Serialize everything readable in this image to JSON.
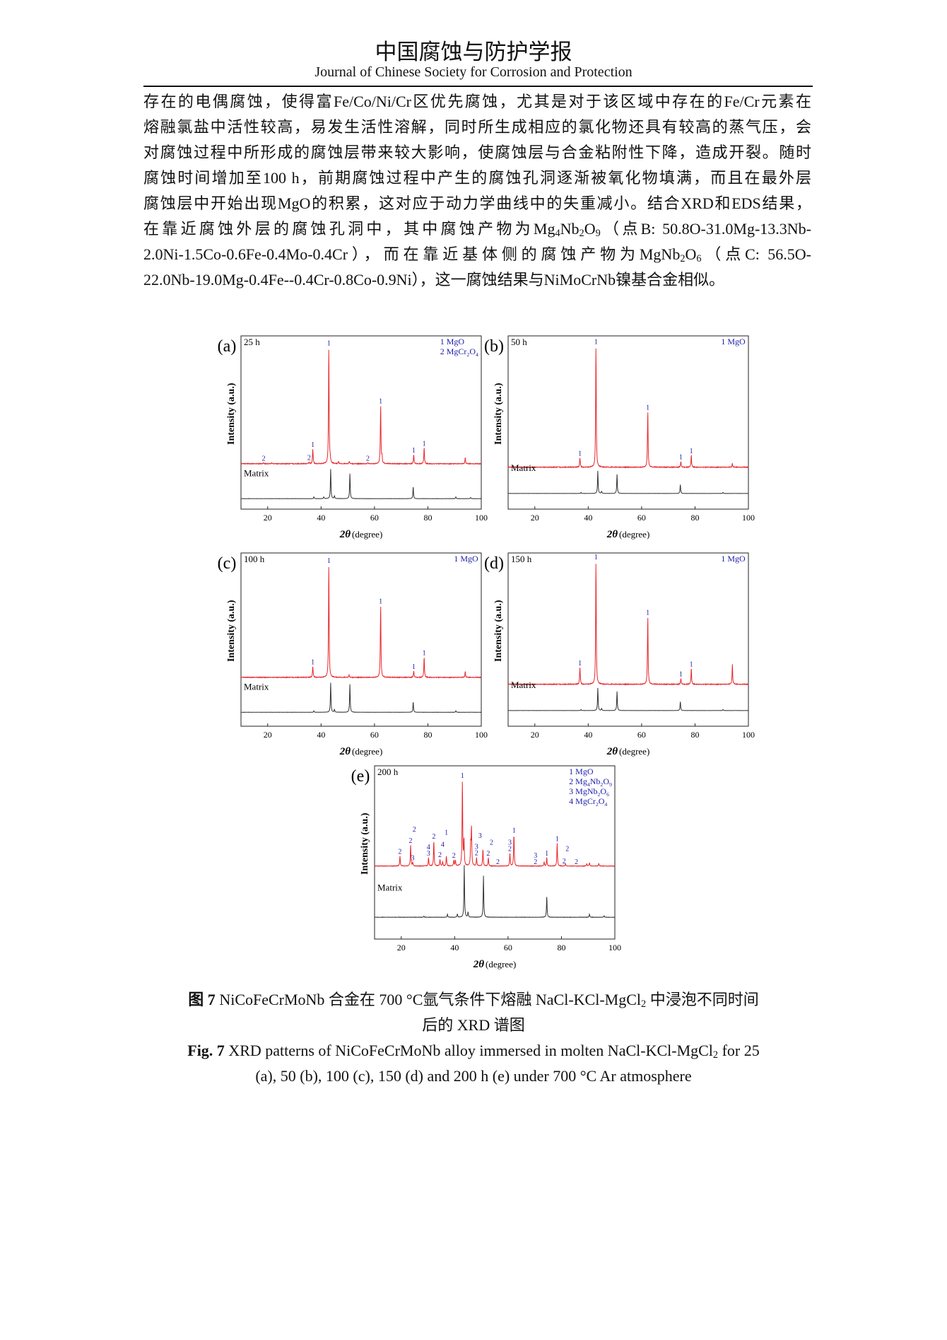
{
  "header": {
    "title_cn": "中国腐蚀与防护学报",
    "title_en": "Journal of Chinese Society for Corrosion and Protection"
  },
  "body_lines": [
    [
      {
        "t": "存在的电偶腐蚀，使得富Fe/Co/Ni/Cr区优先腐蚀，尤其是对于该区域中存在的Fe/Cr元素在"
      }
    ],
    [
      {
        "t": "熔融氯盐中活性较高，易发生活性溶解，同时所生成相应的氯化物还具有较高的蒸气压，会"
      }
    ],
    [
      {
        "t": "对腐蚀过程中所形成的腐蚀层带来较大影响，使腐蚀层与合金粘附性下降，造成开裂。随时"
      }
    ],
    [
      {
        "t": "腐蚀时间增加至100 h，前期腐蚀过程中产生的腐蚀孔洞逐渐被氧化物填满，而且在最外层"
      }
    ],
    [
      {
        "t": "腐蚀层中开始出现MgO的积累，这对应于动力学曲线中的失重减小。结合XRD和EDS结果，"
      }
    ],
    [
      {
        "t": "在靠近腐蚀外层的腐蚀孔洞中，其中腐蚀产物为Mg"
      },
      {
        "t": "4",
        "sub": true
      },
      {
        "t": "Nb"
      },
      {
        "t": "2",
        "sub": true
      },
      {
        "t": "O"
      },
      {
        "t": "9",
        "sub": true
      },
      {
        "t": "（点B: 50.8O-31.0Mg-13.3Nb-"
      }
    ],
    [
      {
        "t": "2.0Ni-1.5Co-0.6Fe-0.4Mo-0.4Cr），而在靠近基体侧的腐蚀产物为MgNb"
      },
      {
        "t": "2",
        "sub": true
      },
      {
        "t": "O"
      },
      {
        "t": "6",
        "sub": true
      },
      {
        "t": "（点C: 56.5O-"
      }
    ],
    [
      {
        "t": "22.0Nb-19.0Mg-0.4Fe--0.4Cr-0.8Co-0.9Ni），这一腐蚀结果与NiMoCrNb镍基合金相似。"
      }
    ]
  ],
  "chart_data": [
    {
      "type": "line",
      "panel": "(a)",
      "time": "25 h",
      "xlabel_sym": "2θ",
      "xlabel_unit": "(degree)",
      "ylabel": "Intensity (a.u.)",
      "xlim": [
        10,
        100
      ],
      "xticks": [
        20,
        40,
        60,
        80,
        100
      ],
      "grid": false,
      "legend_placement": "top-right",
      "legend": [
        [
          "1",
          "MgO"
        ],
        [
          "2",
          "MgCr2O4"
        ]
      ],
      "matrix_label": "Matrix",
      "colors": {
        "sample": "#e8262b",
        "matrix": "#333333",
        "labels": "#1a1aa8"
      },
      "sample_peaks": [
        [
          18.5,
          0.01
        ],
        [
          21.5,
          0.01
        ],
        [
          35.5,
          0.015
        ],
        [
          36.9,
          0.13
        ],
        [
          42.9,
          1.0
        ],
        [
          43.4,
          0.04
        ],
        [
          46.5,
          0.02
        ],
        [
          50.6,
          0.02
        ],
        [
          57.5,
          0.01
        ],
        [
          62.3,
          0.5
        ],
        [
          62.8,
          0.06
        ],
        [
          74.7,
          0.08
        ],
        [
          78.6,
          0.14
        ],
        [
          94.0,
          0.05
        ]
      ],
      "matrix_peaks": [
        [
          37.3,
          0.06
        ],
        [
          41.0,
          0.06
        ],
        [
          43.6,
          1.0
        ],
        [
          45.0,
          0.1
        ],
        [
          50.8,
          0.85
        ],
        [
          74.5,
          0.4
        ],
        [
          90.5,
          0.06
        ],
        [
          96.0,
          0.04
        ]
      ],
      "peak_labels": [
        [
          18.5,
          "2"
        ],
        [
          35.5,
          "2"
        ],
        [
          36.9,
          "1"
        ],
        [
          42.9,
          "1"
        ],
        [
          57.5,
          "2"
        ],
        [
          62.3,
          "1"
        ],
        [
          74.7,
          "1"
        ],
        [
          78.6,
          "1"
        ]
      ]
    },
    {
      "type": "line",
      "panel": "(b)",
      "time": "50 h",
      "xlabel_sym": "2θ",
      "xlabel_unit": "(degree)",
      "ylabel": "Intensity (a.u.)",
      "xlim": [
        10,
        100
      ],
      "xticks": [
        20,
        40,
        60,
        80,
        100
      ],
      "grid": false,
      "legend_placement": "top-right",
      "legend": [
        [
          "1",
          "MgO"
        ]
      ],
      "matrix_label": "Matrix",
      "colors": {
        "sample": "#e8262b",
        "matrix": "#333333",
        "labels": "#1a1aa8"
      },
      "sample_peaks": [
        [
          36.9,
          0.08
        ],
        [
          42.9,
          1.0
        ],
        [
          62.3,
          0.46
        ],
        [
          74.7,
          0.05
        ],
        [
          78.6,
          0.1
        ],
        [
          94.0,
          0.03
        ]
      ],
      "matrix_peaks": [
        [
          37.3,
          0.05
        ],
        [
          43.6,
          1.0
        ],
        [
          45.0,
          0.1
        ],
        [
          50.8,
          0.85
        ],
        [
          74.5,
          0.4
        ],
        [
          90.5,
          0.05
        ]
      ],
      "peak_labels": [
        [
          36.9,
          "1"
        ],
        [
          42.9,
          "1"
        ],
        [
          62.3,
          "1"
        ],
        [
          74.7,
          "1"
        ],
        [
          78.6,
          "1"
        ]
      ]
    },
    {
      "type": "line",
      "panel": "(c)",
      "time": "100 h",
      "xlabel_sym": "2θ",
      "xlabel_unit": "(degree)",
      "ylabel": "Intensity (a.u.)",
      "xlim": [
        10,
        100
      ],
      "xticks": [
        20,
        40,
        60,
        80,
        100
      ],
      "grid": false,
      "legend_placement": "top-right",
      "legend": [
        [
          "1",
          "MgO"
        ]
      ],
      "matrix_label": "Matrix",
      "colors": {
        "sample": "#e8262b",
        "matrix": "#333333",
        "labels": "#1a1aa8"
      },
      "sample_peaks": [
        [
          36.9,
          0.1
        ],
        [
          42.9,
          1.0
        ],
        [
          50.5,
          0.02
        ],
        [
          62.3,
          0.64
        ],
        [
          74.7,
          0.06
        ],
        [
          78.6,
          0.18
        ],
        [
          94.0,
          0.05
        ]
      ],
      "matrix_peaks": [
        [
          37.3,
          0.05
        ],
        [
          43.6,
          1.0
        ],
        [
          45.0,
          0.1
        ],
        [
          50.8,
          0.95
        ],
        [
          74.5,
          0.35
        ],
        [
          90.5,
          0.05
        ]
      ],
      "peak_labels": [
        [
          36.9,
          "1"
        ],
        [
          42.9,
          "1"
        ],
        [
          62.3,
          "1"
        ],
        [
          74.7,
          "1"
        ],
        [
          78.6,
          "1"
        ]
      ]
    },
    {
      "type": "line",
      "panel": "(d)",
      "time": "150 h",
      "xlabel_sym": "2θ",
      "xlabel_unit": "(degree)",
      "ylabel": "Intensity (a.u.)",
      "xlim": [
        10,
        100
      ],
      "xticks": [
        20,
        40,
        60,
        80,
        100
      ],
      "grid": false,
      "legend_placement": "top-right",
      "legend": [
        [
          "1",
          "MgO"
        ]
      ],
      "matrix_label": "Matrix",
      "colors": {
        "sample": "#e8262b",
        "matrix": "#333333",
        "labels": "#1a1aa8"
      },
      "sample_peaks": [
        [
          36.9,
          0.14
        ],
        [
          42.9,
          1.0
        ],
        [
          62.3,
          0.55
        ],
        [
          74.7,
          0.05
        ],
        [
          78.6,
          0.13
        ],
        [
          94.0,
          0.16
        ]
      ],
      "matrix_peaks": [
        [
          37.3,
          0.05
        ],
        [
          43.6,
          1.0
        ],
        [
          45.0,
          0.1
        ],
        [
          50.8,
          0.85
        ],
        [
          74.5,
          0.4
        ],
        [
          90.5,
          0.05
        ]
      ],
      "peak_labels": [
        [
          36.9,
          "1"
        ],
        [
          42.9,
          "1"
        ],
        [
          62.3,
          "1"
        ],
        [
          74.7,
          "1"
        ],
        [
          78.6,
          "1"
        ]
      ]
    },
    {
      "type": "line",
      "panel": "(e)",
      "time": "200 h",
      "xlabel_sym": "2θ",
      "xlabel_unit": "(degree)",
      "ylabel": "Intensity (a.u.)",
      "xlim": [
        10,
        100
      ],
      "xticks": [
        20,
        40,
        60,
        80,
        100
      ],
      "grid": false,
      "legend_placement": "top-right",
      "legend": [
        [
          "1",
          "MgO"
        ],
        [
          "2",
          "Mg4Nb2O9"
        ],
        [
          "3",
          "MgNb2O6"
        ],
        [
          "4",
          "MgCr2O4"
        ]
      ],
      "matrix_label": "Matrix",
      "colors": {
        "sample": "#e8262b",
        "matrix": "#333333",
        "labels": "#1a1aa8"
      },
      "sample_peaks": [
        [
          19.5,
          0.12
        ],
        [
          23.5,
          0.25
        ],
        [
          24.3,
          0.04
        ],
        [
          30.2,
          0.1
        ],
        [
          32.2,
          0.3
        ],
        [
          34.5,
          0.08
        ],
        [
          35.5,
          0.05
        ],
        [
          36.9,
          0.12
        ],
        [
          39.7,
          0.07
        ],
        [
          40.3,
          0.07
        ],
        [
          42.9,
          1.0
        ],
        [
          43.5,
          0.3
        ],
        [
          46.0,
          0.25
        ],
        [
          46.3,
          0.45
        ],
        [
          48.2,
          0.1
        ],
        [
          50.6,
          0.2
        ],
        [
          52.6,
          0.1
        ],
        [
          60.7,
          0.15
        ],
        [
          62.2,
          0.37
        ],
        [
          73.5,
          0.05
        ],
        [
          74.5,
          0.1
        ],
        [
          78.4,
          0.27
        ],
        [
          81.5,
          0.03
        ],
        [
          89.5,
          0.03
        ],
        [
          90.5,
          0.04
        ],
        [
          94.0,
          0.03
        ]
      ],
      "matrix_peaks": [
        [
          28.5,
          0.02
        ],
        [
          37.3,
          0.06
        ],
        [
          41.0,
          0.06
        ],
        [
          43.6,
          1.0
        ],
        [
          45.0,
          0.1
        ],
        [
          50.8,
          0.8
        ],
        [
          74.5,
          0.4
        ],
        [
          90.5,
          0.06
        ],
        [
          96.0,
          0.03
        ]
      ],
      "peak_labels": [
        [
          19.5,
          "2"
        ],
        [
          23.5,
          "2"
        ],
        [
          24.3,
          "3"
        ],
        [
          24.9,
          "2"
        ],
        [
          30.2,
          "4\n3"
        ],
        [
          32.2,
          "2"
        ],
        [
          34.5,
          "2"
        ],
        [
          35.5,
          "4"
        ],
        [
          36.9,
          "1"
        ],
        [
          39.7,
          "2"
        ],
        [
          42.9,
          "1"
        ],
        [
          48.2,
          "3\n2"
        ],
        [
          49.5,
          "3"
        ],
        [
          52.6,
          "2"
        ],
        [
          53.8,
          "2"
        ],
        [
          56.2,
          "2"
        ],
        [
          60.7,
          "3\n2"
        ],
        [
          62.2,
          "1"
        ],
        [
          70.3,
          "3\n2"
        ],
        [
          74.5,
          "1"
        ],
        [
          78.4,
          "1"
        ],
        [
          81.0,
          "2"
        ],
        [
          82.2,
          "2"
        ],
        [
          85.6,
          "2"
        ]
      ]
    }
  ],
  "caption": {
    "cn_line1": [
      {
        "t": "图 7",
        "b": true
      },
      {
        "t": " NiCoFeCrMoNb 合金在 700 °C氩气条件下熔融 NaCl-KCl-MgCl"
      },
      {
        "t": "2",
        "sub": true
      },
      {
        "t": " 中浸泡不同时间"
      }
    ],
    "cn_line2": [
      {
        "t": "后的 XRD 谱图"
      }
    ],
    "en_line1": [
      {
        "t": "Fig. 7",
        "b": true
      },
      {
        "t": " XRD patterns of NiCoFeCrMoNb alloy immersed in molten NaCl-KCl-MgCl"
      },
      {
        "t": "2",
        "sub": true
      },
      {
        "t": " for 25"
      }
    ],
    "en_line2": [
      {
        "t": "(a), 50 (b), 100 (c), 150 (d) and 200 h (e) under 700 °C Ar atmosphere"
      }
    ]
  }
}
